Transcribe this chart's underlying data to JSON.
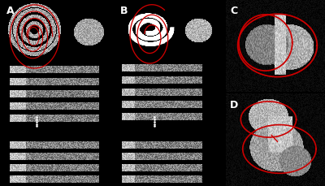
{
  "background_color": "#000000",
  "panel_labels": [
    "A",
    "B",
    "C",
    "D"
  ],
  "label_color": "#ffffff",
  "label_fontsize": 9,
  "contour_color": "#cc0000",
  "fig_width": 4.0,
  "fig_height": 2.3,
  "dpi": 100
}
